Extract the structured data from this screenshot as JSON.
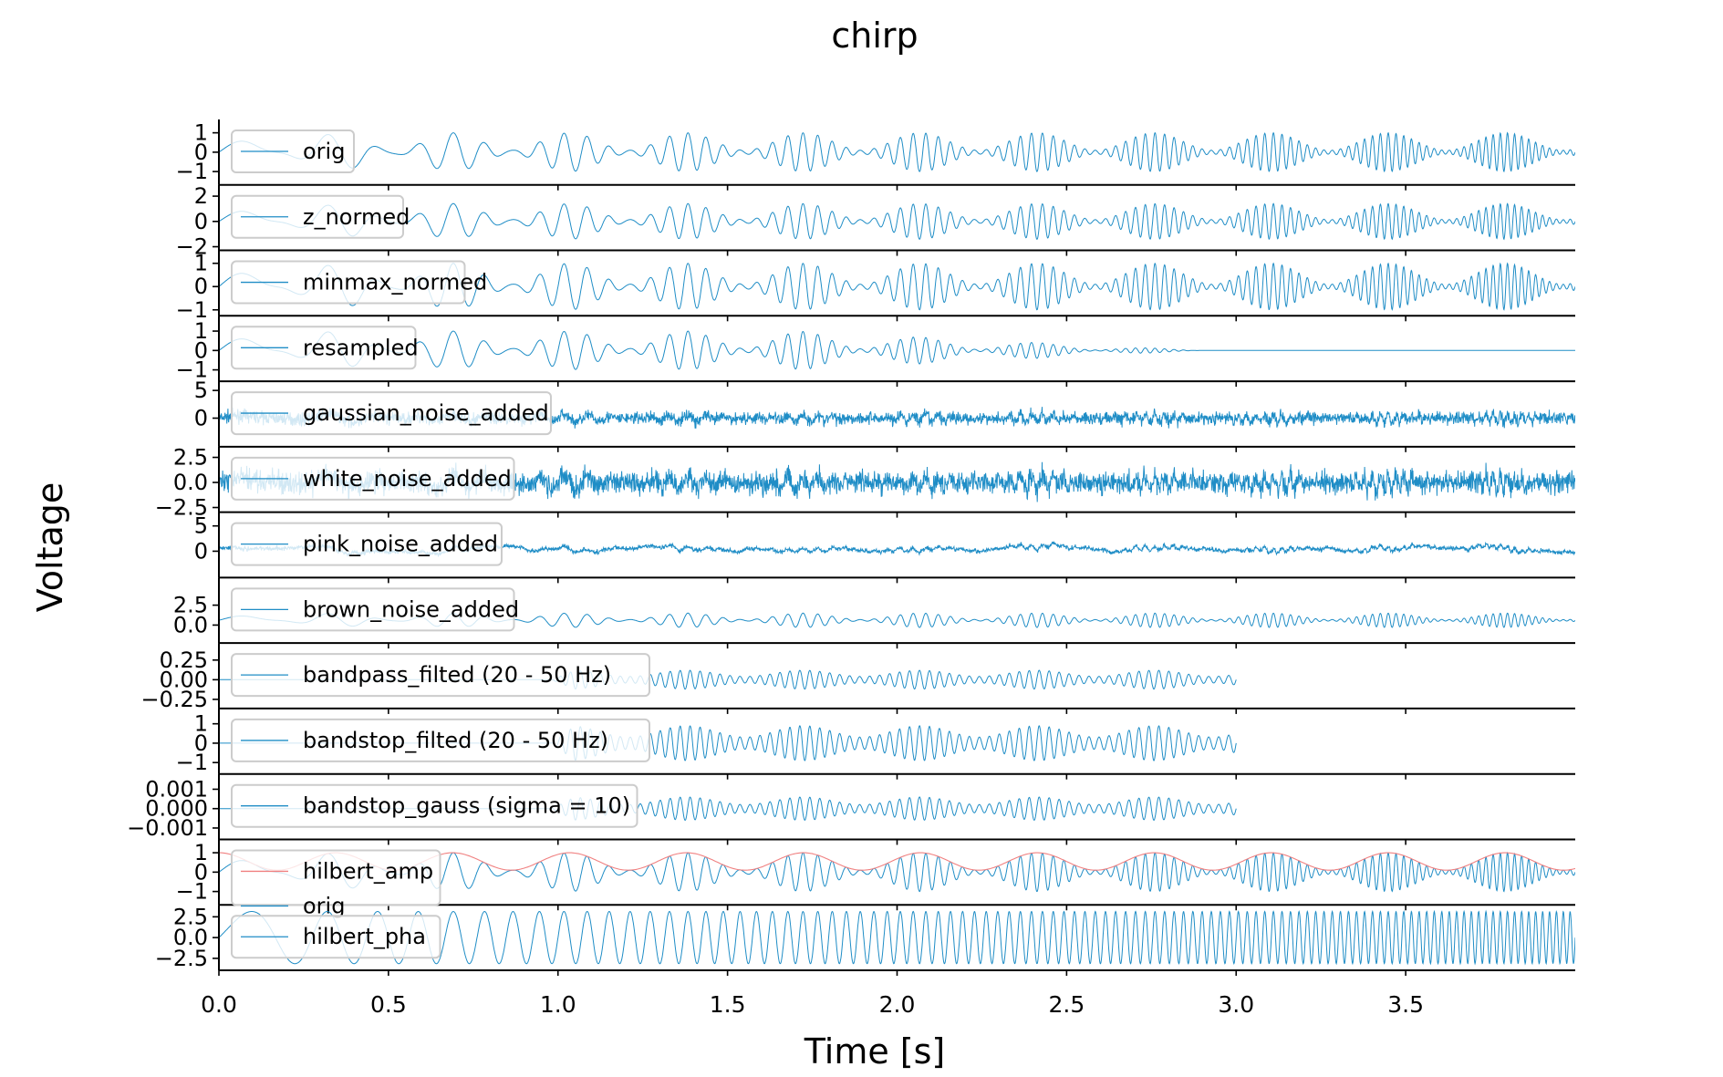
{
  "chart_data": {
    "type": "line",
    "title": "chirp",
    "xlabel": "Time [s]",
    "ylabel": "Voltage",
    "xlim": [
      0,
      4.0
    ],
    "x_ticks": [
      "0.0",
      "0.5",
      "1.0",
      "1.5",
      "2.0",
      "2.5",
      "3.0",
      "3.5"
    ],
    "x_tick_values": [
      0,
      0.5,
      1.0,
      1.5,
      2.0,
      2.5,
      3.0,
      3.5
    ],
    "legend_position": "upper-left",
    "colors": {
      "signal": "#1f8dc6",
      "envelope": "#f08080",
      "axis": "#000000",
      "legend_edge": "#cccccc"
    },
    "panels": [
      {
        "id": "orig",
        "legend": [
          "orig"
        ],
        "ylim": [
          -1.5,
          1.5
        ],
        "y_ticks": [
          {
            "v": 1,
            "label": "1"
          },
          {
            "v": 0,
            "label": "0"
          },
          {
            "v": -1,
            "label": "−1"
          }
        ],
        "amplitude": 1,
        "duration": 4.0,
        "style": "chirp"
      },
      {
        "id": "z_normed",
        "legend": [
          "z_normed"
        ],
        "ylim": [
          -2,
          2.6
        ],
        "y_ticks": [
          {
            "v": 2,
            "label": "2"
          },
          {
            "v": 0,
            "label": "0"
          },
          {
            "v": -2,
            "label": "−2"
          }
        ],
        "amplitude": 1.41,
        "duration": 4.0,
        "style": "chirp"
      },
      {
        "id": "minmax_normed",
        "legend": [
          "minmax_normed"
        ],
        "ylim": [
          -1.1,
          1.4
        ],
        "y_ticks": [
          {
            "v": 1,
            "label": "1"
          },
          {
            "v": 0,
            "label": "0"
          },
          {
            "v": -1,
            "label": "−1"
          }
        ],
        "amplitude": 1,
        "duration": 4.0,
        "style": "chirp"
      },
      {
        "id": "resampled",
        "legend": [
          "resampled"
        ],
        "ylim": [
          -1.4,
          1.6
        ],
        "y_ticks": [
          {
            "v": 1,
            "label": "1"
          },
          {
            "v": 0,
            "label": "0"
          },
          {
            "v": -1,
            "label": "−1"
          }
        ],
        "amplitude": 1,
        "duration": 4.0,
        "style": "resampled"
      },
      {
        "id": "gaussian_noise_added",
        "legend": [
          "gaussian_noise_added"
        ],
        "ylim": [
          -4.5,
          6
        ],
        "y_ticks": [
          {
            "v": 5,
            "label": "5"
          },
          {
            "v": 0,
            "label": "0"
          }
        ],
        "amplitude": 1,
        "duration": 4.0,
        "style": "noise"
      },
      {
        "id": "white_noise_added",
        "legend": [
          "white_noise_added"
        ],
        "ylim": [
          -2.6,
          3.2
        ],
        "y_ticks": [
          {
            "v": 2.5,
            "label": "2.5"
          },
          {
            "v": 0,
            "label": "0.0"
          },
          {
            "v": -2.5,
            "label": "−2.5"
          }
        ],
        "amplitude": 1,
        "duration": 4.0,
        "style": "noise"
      },
      {
        "id": "pink_noise_added",
        "legend": [
          "pink_noise_added"
        ],
        "ylim": [
          -4.5,
          7
        ],
        "y_ticks": [
          {
            "v": 5,
            "label": "5"
          },
          {
            "v": 0,
            "label": "0"
          }
        ],
        "amplitude": 1,
        "duration": 4.0,
        "style": "pink"
      },
      {
        "id": "brown_noise_added",
        "legend": [
          "brown_noise_added"
        ],
        "ylim": [
          -1.8,
          5.5
        ],
        "y_ticks": [
          {
            "v": 2.5,
            "label": "2.5"
          },
          {
            "v": 0,
            "label": "0.0"
          }
        ],
        "amplitude": 1,
        "duration": 4.0,
        "style": "brown"
      },
      {
        "id": "bandpass_filted",
        "legend": [
          "bandpass_filted (20 - 50 Hz)"
        ],
        "ylim": [
          -0.32,
          0.42
        ],
        "y_ticks": [
          {
            "v": 0.25,
            "label": "0.25"
          },
          {
            "v": 0,
            "label": "0.00"
          },
          {
            "v": -0.25,
            "label": "−0.25"
          }
        ],
        "amplitude": 0.12,
        "duration": 3.0,
        "style": "band"
      },
      {
        "id": "bandstop_filted",
        "legend": [
          "bandstop_filted (20 - 50 Hz)"
        ],
        "ylim": [
          -1.4,
          1.6
        ],
        "y_ticks": [
          {
            "v": 1,
            "label": "1"
          },
          {
            "v": 0,
            "label": "0"
          },
          {
            "v": -1,
            "label": "−1"
          }
        ],
        "amplitude": 0.9,
        "duration": 3.0,
        "style": "band"
      },
      {
        "id": "bandstop_gauss",
        "legend": [
          "bandstop_gauss (sigma = 10)"
        ],
        "ylim": [
          -0.0014,
          0.0016
        ],
        "y_ticks": [
          {
            "v": 0.001,
            "label": "0.001"
          },
          {
            "v": 0,
            "label": "0.000"
          },
          {
            "v": -0.001,
            "label": "−0.001"
          }
        ],
        "amplitude": 0.0006,
        "duration": 3.0,
        "style": "band"
      },
      {
        "id": "hilbert_amp",
        "legend": [
          "hilbert_amp",
          "orig"
        ],
        "ylim": [
          -1.5,
          1.5
        ],
        "y_ticks": [
          {
            "v": 1,
            "label": "1"
          },
          {
            "v": 0,
            "label": "0"
          },
          {
            "v": -1,
            "label": "−1"
          }
        ],
        "amplitude": 1,
        "duration": 4.0,
        "style": "hilbert_amp"
      },
      {
        "id": "hilbert_pha",
        "legend": [
          "hilbert_pha"
        ],
        "ylim": [
          -3.5,
          3.5
        ],
        "y_ticks": [
          {
            "v": 2.5,
            "label": "2.5"
          },
          {
            "v": 0,
            "label": "0.0"
          },
          {
            "v": -2.5,
            "label": "−2.5"
          }
        ],
        "amplitude": 3.14,
        "duration": 4.0,
        "style": "phase"
      }
    ]
  }
}
